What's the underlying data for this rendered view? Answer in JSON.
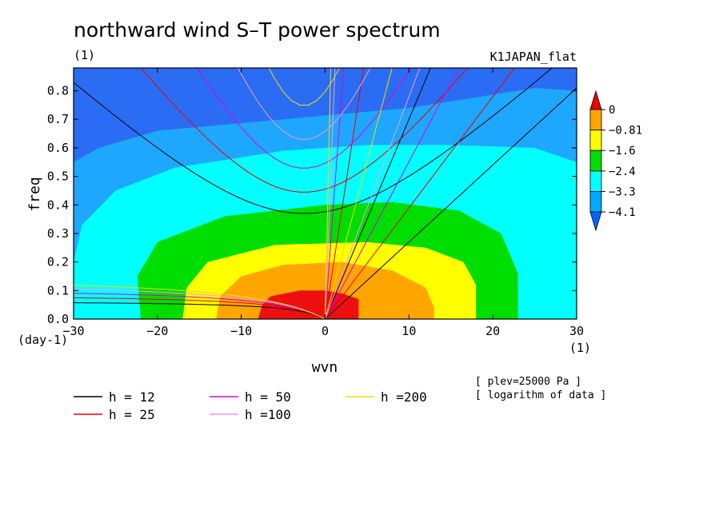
{
  "chart_data": {
    "type": "contour",
    "title": "northward wind S–T power spectrum",
    "x_unit": "(1)",
    "y_unit": "(day-1)",
    "x_unit_bottom": "(1)",
    "dataset_label": "K1JAPAN_flat",
    "xlabel": "wvn",
    "ylabel": "freq",
    "xlim": [
      -30,
      30
    ],
    "ylim": [
      0.0,
      0.88
    ],
    "xticks": [
      -30,
      -20,
      -10,
      0,
      10,
      20,
      30
    ],
    "xtick_labels": [
      "−30",
      "−20",
      "−10",
      "0",
      "10",
      "20",
      "30"
    ],
    "yticks": [
      0.0,
      0.1,
      0.2,
      0.3,
      0.4,
      0.5,
      0.6,
      0.7,
      0.8
    ],
    "ytick_labels": [
      "0.0",
      "0.1",
      "0.2",
      "0.3",
      "0.4",
      "0.5",
      "0.6",
      "0.7",
      "0.8"
    ],
    "colorbar": {
      "labels": [
        "0",
        "−0.81",
        "−1.6",
        "−2.4",
        "−3.3",
        "−4.1"
      ],
      "colors_top_to_bottom": [
        "#ee0000",
        "#ffa500",
        "#ffff00",
        "#00dd00",
        "#00ffff",
        "#00aaff",
        "#0066ff"
      ]
    },
    "filled_levels": [
      {
        "level": "<-4.1",
        "color": "#2a6df4"
      },
      {
        "level": "-4.1",
        "color": "#1ea7ff"
      },
      {
        "level": "-3.3",
        "color": "#00ffff"
      },
      {
        "level": "-2.4",
        "color": "#00dd00"
      },
      {
        "level": "-1.6",
        "color": "#ffff00"
      },
      {
        "level": "-0.81",
        "color": "#ffa500"
      },
      {
        "level": "0",
        "color": "#ee1010"
      }
    ],
    "dispersion_curves": [
      {
        "label": "h = 12",
        "h": 12,
        "color": "#000000"
      },
      {
        "label": "h = 25",
        "h": 25,
        "color": "#ee0000"
      },
      {
        "label": "h = 50",
        "h": 50,
        "color": "#dd00dd"
      },
      {
        "label": "h =100",
        "h": 100,
        "color": "#ee99ee"
      },
      {
        "label": "h =200",
        "h": 200,
        "color": "#eedd00"
      }
    ],
    "annotations": [
      "[ plev=25000 Pa ]",
      "[ logarithm of data ]"
    ]
  }
}
